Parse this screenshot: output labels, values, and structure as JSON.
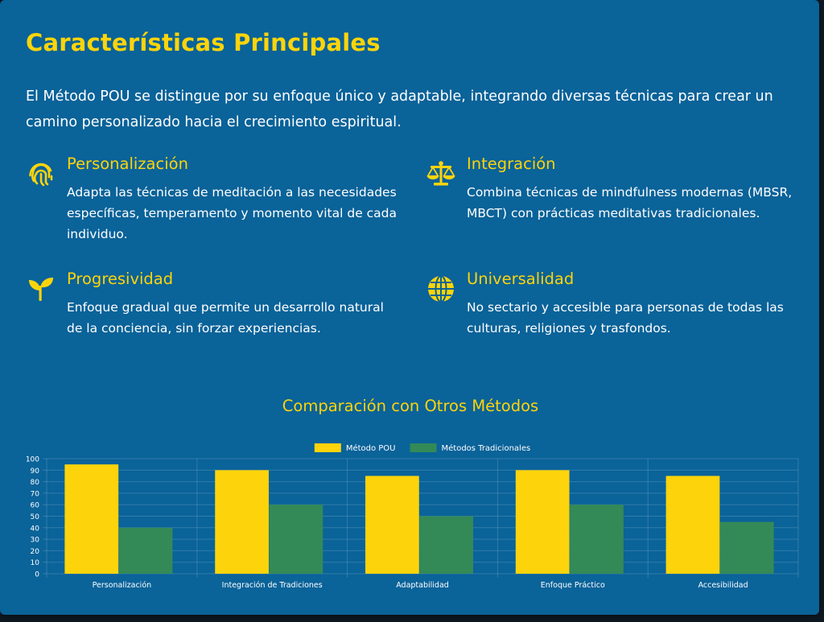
{
  "heading": "Características Principales",
  "intro": "El Método POU se distingue por su enfoque único y adaptable, integrando diversas técnicas para crear un camino personalizado hacia el crecimiento espiritual.",
  "features": [
    {
      "icon": "fingerprint-icon",
      "title": "Personalización",
      "description": "Adapta las técnicas de meditación a las necesidades específicas, temperamento y momento vital de cada individuo."
    },
    {
      "icon": "balance-scale-icon",
      "title": "Integración",
      "description": "Combina técnicas de mindfulness modernas (MBSR, MBCT) con prácticas meditativas tradicionales."
    },
    {
      "icon": "seedling-icon",
      "title": "Progresividad",
      "description": "Enfoque gradual que permite un desarrollo natural de la conciencia, sin forzar experiencias."
    },
    {
      "icon": "globe-icon",
      "title": "Universalidad",
      "description": "No sectario y accesible para personas de todas las culturas, religiones y trasfondos."
    }
  ],
  "colors": {
    "background": "#0a6399",
    "accent": "#fdd40b",
    "series_pou": "#fdd40b",
    "series_traditional": "#338a57",
    "text": "#ffffff"
  },
  "chart_data": {
    "type": "bar",
    "title": "Comparación con Otros Métodos",
    "categories": [
      "Personalización",
      "Integración de Tradiciones",
      "Adaptabilidad",
      "Enfoque Práctico",
      "Accesibilidad"
    ],
    "series": [
      {
        "name": "Método POU",
        "color": "#fdd40b",
        "values": [
          95,
          90,
          85,
          90,
          85
        ]
      },
      {
        "name": "Métodos Tradicionales",
        "color": "#338a57",
        "values": [
          40,
          60,
          50,
          60,
          45
        ]
      }
    ],
    "ylim": [
      0,
      100
    ],
    "yticks": [
      0,
      10,
      20,
      30,
      40,
      50,
      60,
      70,
      80,
      90,
      100
    ],
    "grid": true,
    "legend": "top-center"
  }
}
